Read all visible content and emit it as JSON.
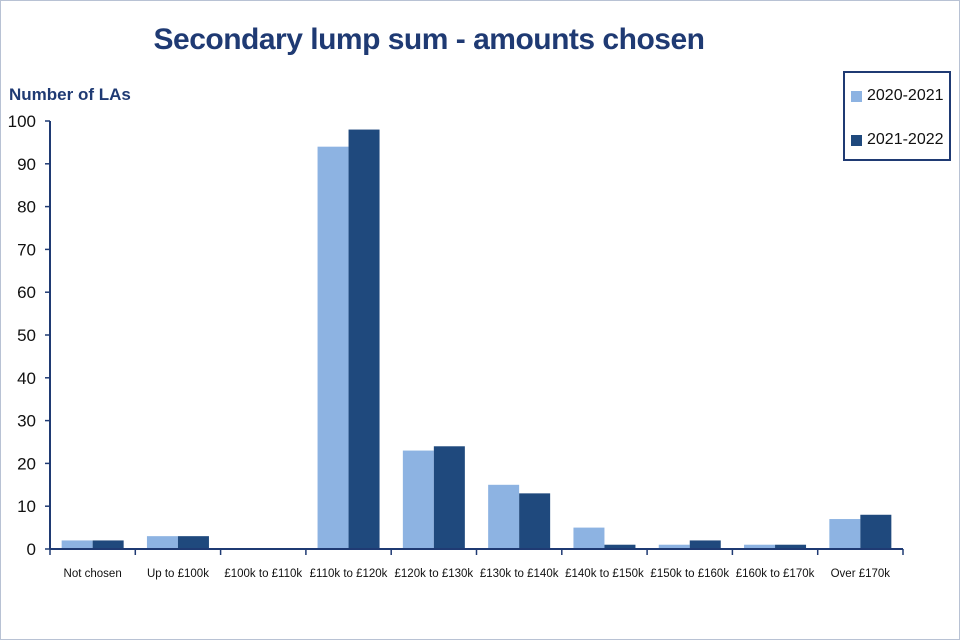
{
  "chart_data": {
    "type": "bar",
    "title": "Secondary lump sum - amounts chosen",
    "ylabel": "Number of LAs",
    "xlabel": "",
    "categories": [
      "Not chosen",
      "Up to £100k",
      "£100k to £110k",
      "£110k to £120k",
      "£120k to £130k",
      "£130k to £140k",
      "£140k to £150k",
      "£150k to £160k",
      "£160k to £170k",
      "Over £170k"
    ],
    "series": [
      {
        "name": "2020-2021",
        "color": "#8db3e2",
        "values": [
          2,
          3,
          0,
          94,
          23,
          15,
          5,
          1,
          1,
          7
        ]
      },
      {
        "name": "2021-2022",
        "color": "#1f497d",
        "values": [
          2,
          3,
          0,
          98,
          24,
          13,
          1,
          2,
          1,
          8
        ]
      }
    ],
    "ylim": [
      0,
      100
    ],
    "yticks": [
      0,
      10,
      20,
      30,
      40,
      50,
      60,
      70,
      80,
      90,
      100
    ],
    "grid": false,
    "legend_position": "top-right"
  }
}
